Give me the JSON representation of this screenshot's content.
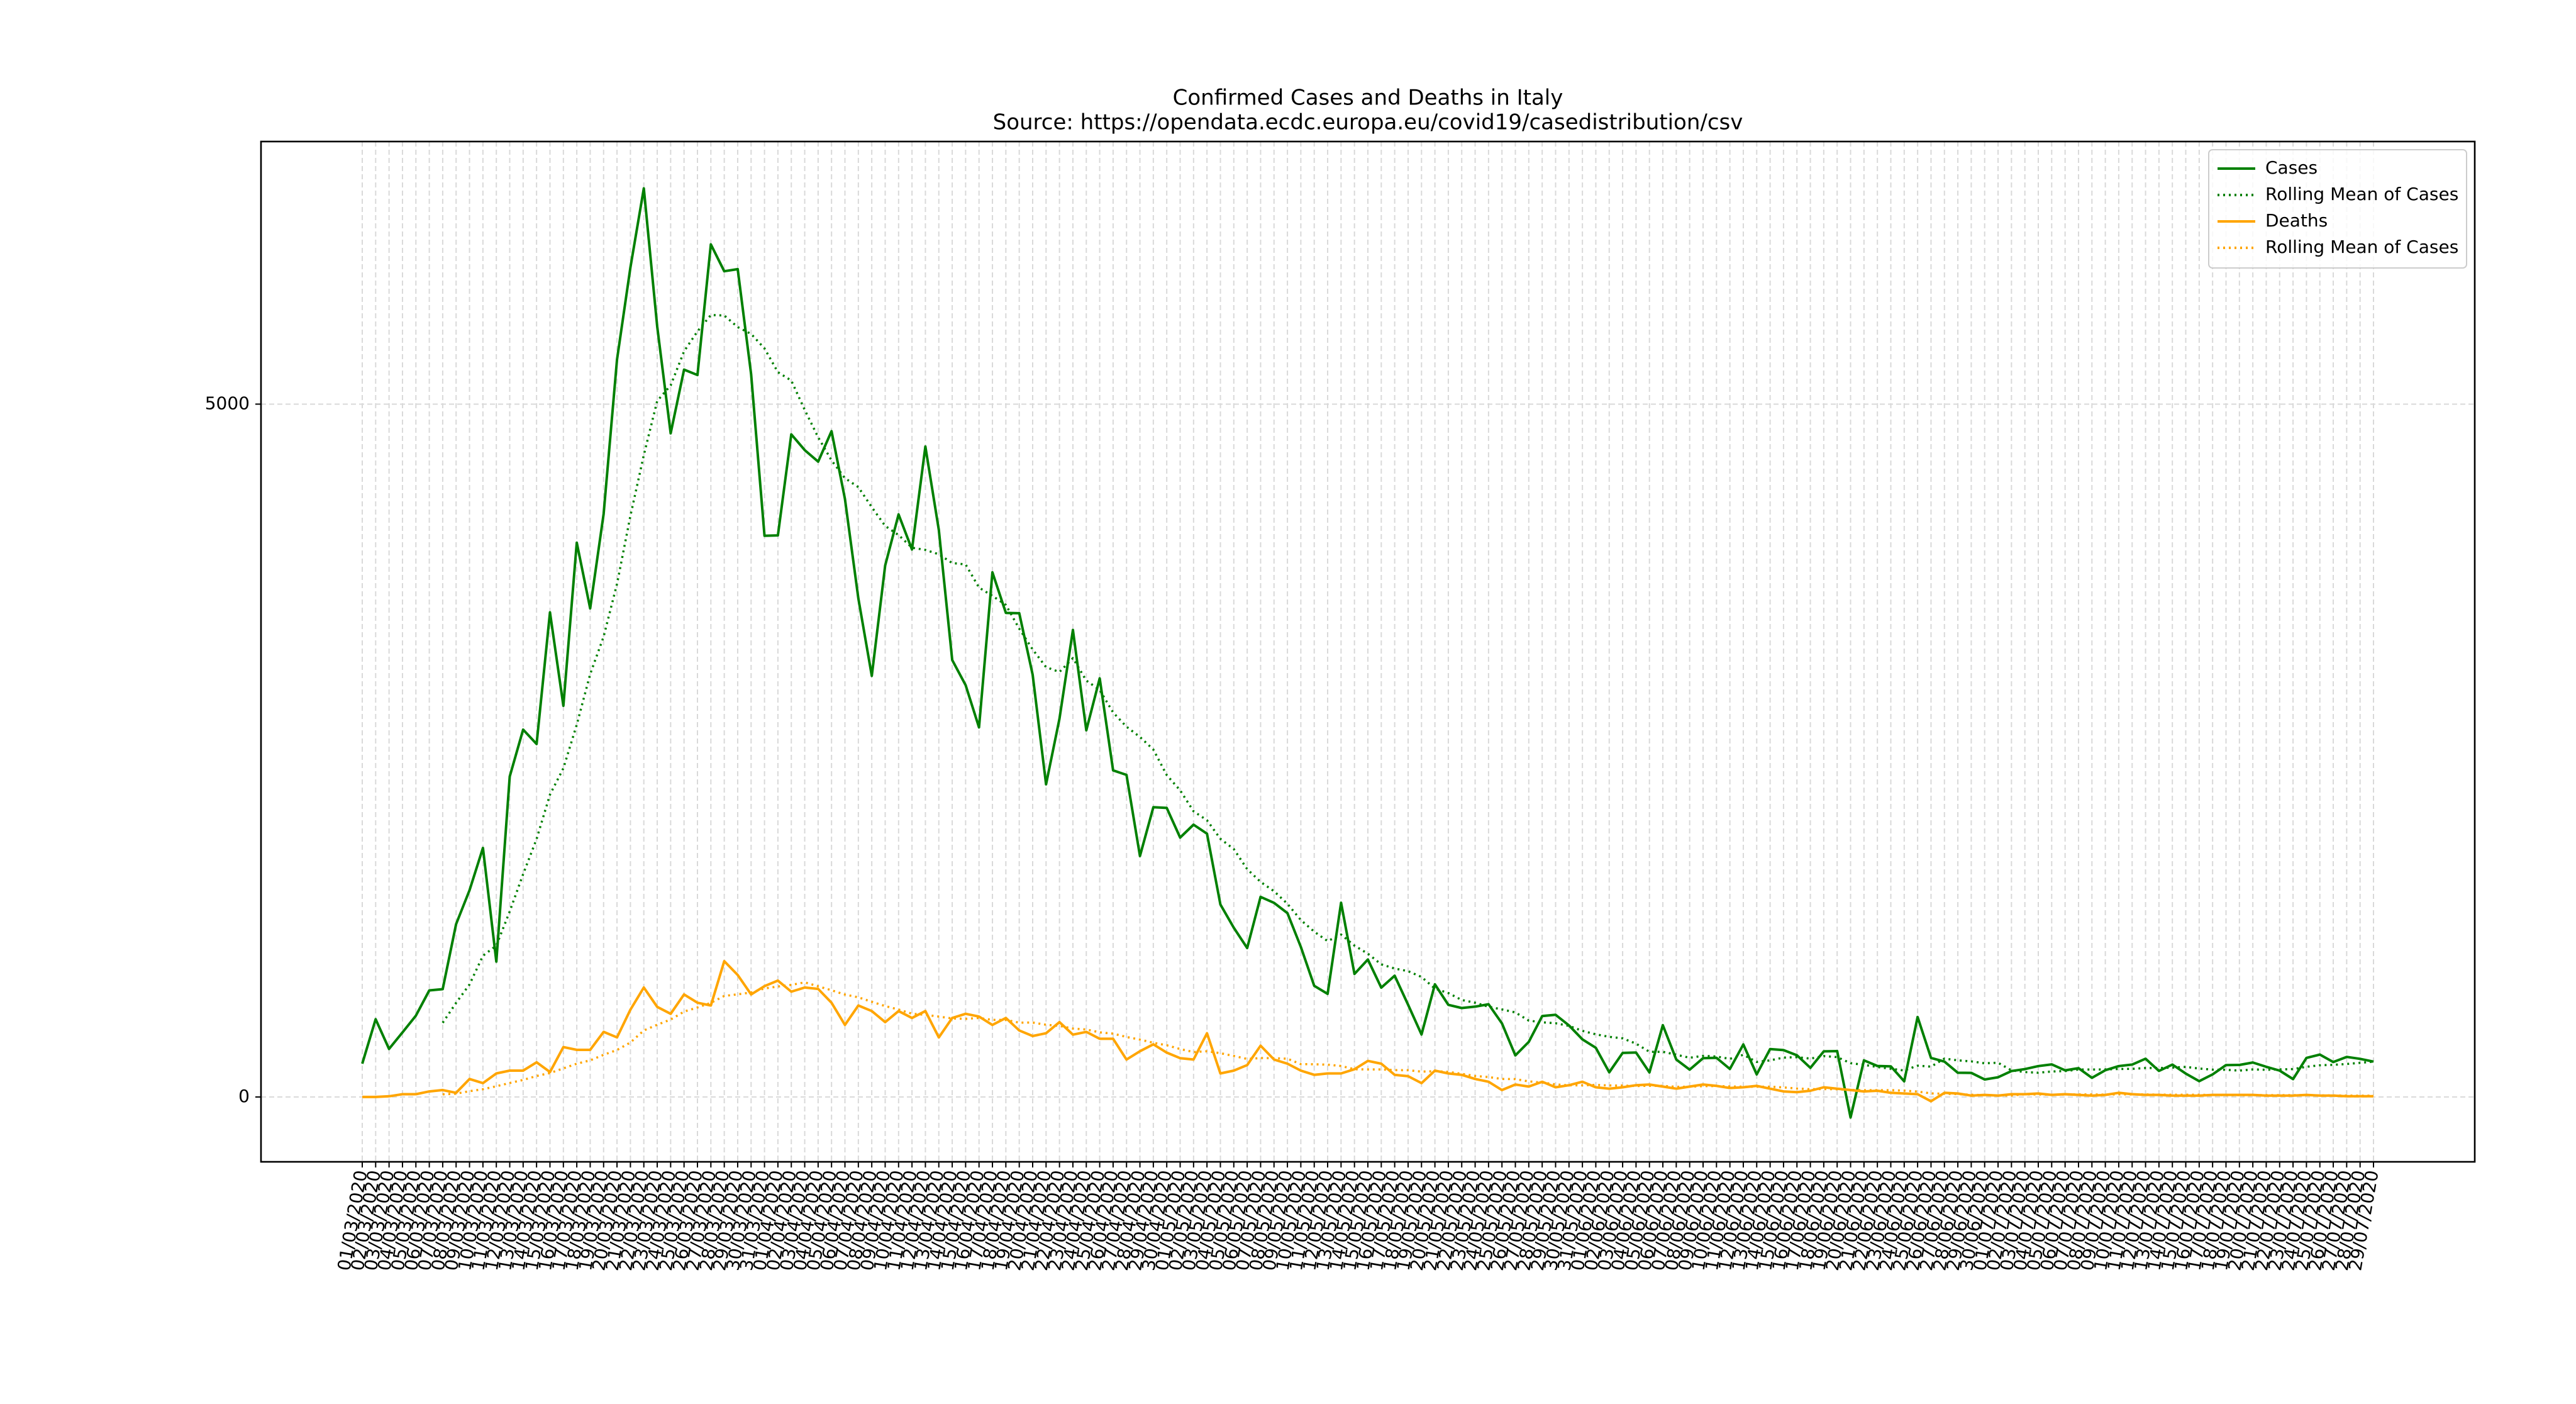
{
  "chart_data": {
    "type": "line",
    "title": "Confirmed Cases and Deaths in Italy",
    "subtitle": "Source: https://opendata.ecdc.europa.eu/covid19/casedistribution/csv",
    "categories": [
      "01/03/2020",
      "02/03/2020",
      "03/03/2020",
      "04/03/2020",
      "05/03/2020",
      "06/03/2020",
      "07/03/2020",
      "08/03/2020",
      "09/03/2020",
      "10/03/2020",
      "11/03/2020",
      "12/03/2020",
      "13/03/2020",
      "14/03/2020",
      "15/03/2020",
      "16/03/2020",
      "17/03/2020",
      "18/03/2020",
      "19/03/2020",
      "20/03/2020",
      "21/03/2020",
      "22/03/2020",
      "23/03/2020",
      "24/03/2020",
      "25/03/2020",
      "26/03/2020",
      "27/03/2020",
      "28/03/2020",
      "29/03/2020",
      "30/03/2020",
      "31/03/2020",
      "01/04/2020",
      "02/04/2020",
      "03/04/2020",
      "04/04/2020",
      "05/04/2020",
      "06/04/2020",
      "07/04/2020",
      "08/04/2020",
      "09/04/2020",
      "10/04/2020",
      "11/04/2020",
      "12/04/2020",
      "13/04/2020",
      "14/04/2020",
      "15/04/2020",
      "16/04/2020",
      "17/04/2020",
      "18/04/2020",
      "19/04/2020",
      "20/04/2020",
      "21/04/2020",
      "22/04/2020",
      "23/04/2020",
      "24/04/2020",
      "25/04/2020",
      "26/04/2020",
      "27/04/2020",
      "28/04/2020",
      "29/04/2020",
      "30/04/2020",
      "01/05/2020",
      "02/05/2020",
      "03/05/2020",
      "04/05/2020",
      "05/05/2020",
      "06/05/2020",
      "07/05/2020",
      "08/05/2020",
      "09/05/2020",
      "10/05/2020",
      "11/05/2020",
      "12/05/2020",
      "13/05/2020",
      "14/05/2020",
      "15/05/2020",
      "16/05/2020",
      "17/05/2020",
      "18/05/2020",
      "19/05/2020",
      "20/05/2020",
      "21/05/2020",
      "22/05/2020",
      "23/05/2020",
      "24/05/2020",
      "25/05/2020",
      "26/05/2020",
      "27/05/2020",
      "28/05/2020",
      "29/05/2020",
      "30/05/2020",
      "31/05/2020",
      "01/06/2020",
      "02/06/2020",
      "03/06/2020",
      "04/06/2020",
      "05/06/2020",
      "06/06/2020",
      "07/06/2020",
      "08/06/2020",
      "09/06/2020",
      "10/06/2020",
      "11/06/2020",
      "12/06/2020",
      "13/06/2020",
      "14/06/2020",
      "15/06/2020",
      "16/06/2020",
      "17/06/2020",
      "18/06/2020",
      "19/06/2020",
      "20/06/2020",
      "21/06/2020",
      "22/06/2020",
      "23/06/2020",
      "24/06/2020",
      "25/06/2020",
      "26/06/2020",
      "27/06/2020",
      "28/06/2020",
      "29/06/2020",
      "30/06/2020",
      "01/07/2020",
      "02/07/2020",
      "03/07/2020",
      "04/07/2020",
      "05/07/2020",
      "06/07/2020",
      "07/07/2020",
      "08/07/2020",
      "09/07/2020",
      "10/07/2020",
      "11/07/2020",
      "12/07/2020",
      "13/07/2020",
      "14/07/2020",
      "15/07/2020",
      "16/07/2020",
      "17/07/2020",
      "18/07/2020",
      "19/07/2020",
      "20/07/2020",
      "21/07/2020",
      "22/07/2020",
      "23/07/2020",
      "24/07/2020",
      "25/07/2020",
      "26/07/2020",
      "27/07/2020",
      "28/07/2020",
      "29/07/2020"
    ],
    "series": [
      {
        "name": "Cases",
        "color": "#008000",
        "style": "solid",
        "values": [
          240,
          561,
          347,
          466,
          587,
          769,
          778,
          1247,
          1492,
          1797,
          977,
          2313,
          2651,
          2547,
          3497,
          2823,
          4000,
          3526,
          4207,
          5322,
          5986,
          6557,
          5560,
          4789,
          5249,
          5210,
          6153,
          5959,
          5974,
          5217,
          4050,
          4053,
          4782,
          4668,
          4585,
          4805,
          4316,
          3599,
          3039,
          3836,
          4204,
          3951,
          4694,
          4092,
          3153,
          2972,
          2667,
          3786,
          3493,
          3491,
          3047,
          2256,
          2729,
          3370,
          2646,
          3021,
          2357,
          2324,
          1739,
          2091,
          2086,
          1872,
          1965,
          1900,
          1389,
          1221,
          1075,
          1444,
          1401,
          1327,
          1083,
          802,
          744,
          1402,
          888,
          992,
          789,
          875,
          665,
          451,
          813,
          665,
          642,
          652,
          669,
          531,
          300,
          397,
          584,
          593,
          516,
          416,
          355,
          178,
          318,
          321,
          177,
          518,
          270,
          197,
          280,
          283,
          202,
          379,
          163,
          346,
          338,
          301,
          210,
          329,
          331,
          -148,
          264,
          224,
          221,
          113,
          577,
          282,
          255,
          175,
          174,
          126,
          142,
          187,
          201,
          223,
          235,
          192,
          208,
          138,
          193,
          223,
          234,
          276,
          188,
          234,
          169,
          114,
          163,
          230,
          231,
          249,
          218,
          190,
          129,
          282,
          306,
          252,
          289,
          275,
          255
        ]
      },
      {
        "name": "Rolling Mean of Cases",
        "color": "#008000",
        "style": "dotted",
        "values": [
          null,
          null,
          null,
          null,
          null,
          null,
          535,
          679,
          812,
          1019,
          1092,
          1339,
          1608,
          1861,
          2182,
          2372,
          2687,
          3051,
          3322,
          3703,
          4194,
          4632,
          5023,
          5135,
          5381,
          5525,
          5643,
          5640,
          5556,
          5507,
          5402,
          5231,
          5170,
          4958,
          4761,
          4594,
          4466,
          4401,
          4256,
          4121,
          4055,
          3964,
          3948,
          3916,
          3853,
          3843,
          3676,
          3616,
          3551,
          3379,
          3230,
          3102,
          3067,
          3167,
          3005,
          2937,
          2775,
          2672,
          2598,
          2507,
          2323,
          2213,
          2062,
          1997,
          1863,
          1789,
          1644,
          1552,
          1485,
          1394,
          1277,
          1193,
          1125,
          1172,
          1092,
          1034,
          957,
          927,
          908,
          866,
          782,
          750,
          700,
          680,
          651,
          632,
          610,
          551,
          539,
          532,
          513,
          477,
          452,
          434,
          423,
          385,
          326,
          326,
          305,
          283,
          297,
          292,
          275,
          304,
          253,
          264,
          284,
          287,
          277,
          295,
          288,
          244,
          232,
          216,
          204,
          191,
          226,
          219,
          277,
          264,
          257,
          243,
          247,
          192,
          180,
          175,
          184,
          187,
          198,
          198,
          199,
          202,
          203,
          209,
          209,
          212,
          217,
          205,
          197,
          196,
          190,
          199,
          196,
          199,
          201,
          218,
          229,
          232,
          238,
          246,
          255
        ]
      },
      {
        "name": "Deaths",
        "color": "#ffa500",
        "style": "solid",
        "values": [
          0,
          0,
          5,
          20,
          20,
          40,
          50,
          30,
          130,
          100,
          170,
          190,
          190,
          250,
          180,
          360,
          340,
          340,
          470,
          430,
          630,
          790,
          650,
          600,
          740,
          680,
          660,
          980,
          880,
          740,
          800,
          840,
          760,
          790,
          780,
          680,
          520,
          660,
          620,
          540,
          620,
          570,
          620,
          430,
          570,
          600,
          580,
          520,
          570,
          480,
          440,
          460,
          540,
          450,
          470,
          420,
          420,
          270,
          330,
          380,
          320,
          280,
          270,
          460,
          170,
          190,
          230,
          370,
          270,
          240,
          190,
          160,
          170,
          170,
          200,
          260,
          240,
          160,
          150,
          100,
          190,
          170,
          160,
          130,
          110,
          50,
          90,
          75,
          110,
          70,
          85,
          110,
          70,
          60,
          70,
          85,
          90,
          75,
          60,
          75,
          90,
          80,
          65,
          70,
          80,
          60,
          40,
          35,
          45,
          70,
          60,
          50,
          40,
          45,
          30,
          25,
          20,
          -31,
          30,
          25,
          10,
          15,
          10,
          20,
          20,
          25,
          15,
          20,
          15,
          10,
          15,
          30,
          20,
          15,
          15,
          10,
          10,
          10,
          15,
          15,
          15,
          15,
          10,
          10,
          10,
          15,
          10,
          10,
          5,
          5,
          5
        ]
      },
      {
        "name": "Rolling Mean of Cases",
        "color": "#ffa500",
        "style": "dotted",
        "values": [
          null,
          null,
          null,
          null,
          null,
          null,
          19,
          24,
          42,
          56,
          77,
          101,
          123,
          151,
          173,
          206,
          240,
          264,
          304,
          339,
          393,
          480,
          521,
          559,
          616,
          646,
          679,
          729,
          741,
          754,
          783,
          797,
          809,
          827,
          799,
          770,
          739,
          719,
          687,
          656,
          631,
          601,
          593,
          580,
          567,
          564,
          570,
          556,
          556,
          536,
          537,
          521,
          513,
          494,
          487,
          466,
          457,
          433,
          414,
          391,
          373,
          346,
          324,
          330,
          316,
          296,
          274,
          281,
          280,
          276,
          237,
          236,
          233,
          224,
          200,
          199,
          199,
          194,
          193,
          183,
          186,
          181,
          167,
          151,
          144,
          130,
          129,
          112,
          104,
          91,
          84,
          84,
          87,
          83,
          82,
          79,
          81,
          80,
          73,
          74,
          78,
          79,
          76,
          74,
          74,
          74,
          69,
          61,
          56,
          57,
          56,
          51,
          49,
          49,
          49,
          46,
          39,
          26,
          23,
          21,
          16,
          13,
          11,
          11,
          19,
          18,
          16,
          18,
          18,
          18,
          17,
          19,
          18,
          18,
          17,
          16,
          16,
          16,
          14,
          13,
          13,
          13,
          13,
          13,
          13,
          13,
          12,
          11,
          10,
          9,
          9
        ]
      }
    ],
    "ylim": [
      -468,
      6895
    ],
    "yticks": [
      0,
      5000
    ],
    "grid": true,
    "legend": "upper right"
  }
}
